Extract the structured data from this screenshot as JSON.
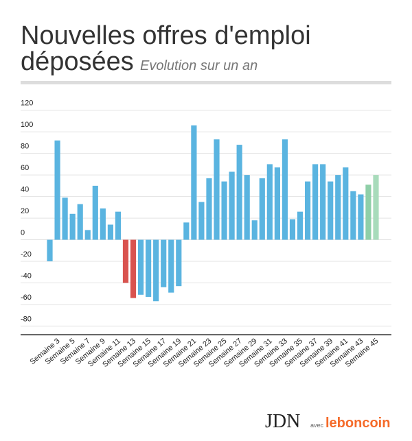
{
  "chart_data": {
    "type": "bar",
    "title": [
      "Nouvelles offres d'emploi",
      "déposées"
    ],
    "subtitle": "Evolution sur un an",
    "categories": [
      null,
      "Semaine 3",
      null,
      "Semaine 5",
      null,
      "Semaine 7",
      null,
      "Semaine 9",
      null,
      "Semaine 11",
      null,
      "Semaine 13",
      null,
      "Semaine 15",
      null,
      "Semaine 17",
      null,
      "Semaine 19",
      null,
      "Semaine 21",
      null,
      "Semaine 23",
      null,
      "Semaine 25",
      null,
      "Semaine 27",
      null,
      "Semaine 29",
      null,
      "Semaine 31",
      null,
      "Semaine 33",
      null,
      "Semaine 35",
      null,
      "Semaine 37",
      null,
      "Semaine 39",
      null,
      "Semaine 41",
      null,
      "Semaine 43",
      null,
      "Semaine 45"
    ],
    "values": [
      -20,
      92,
      39,
      24,
      33,
      9,
      50,
      29,
      14,
      26,
      -40,
      -54,
      -51,
      -53,
      -57,
      -44,
      -49,
      -43,
      16,
      106,
      35,
      57,
      93,
      54,
      63,
      88,
      60,
      18,
      57,
      70,
      67,
      93,
      19,
      26,
      54,
      70,
      70,
      54,
      60,
      67,
      45,
      42,
      51,
      60
    ],
    "colors": [
      "#5ab4e0",
      "#5ab4e0",
      "#5ab4e0",
      "#5ab4e0",
      "#5ab4e0",
      "#5ab4e0",
      "#5ab4e0",
      "#5ab4e0",
      "#5ab4e0",
      "#5ab4e0",
      "#d9534f",
      "#d9534f",
      "#5ab4e0",
      "#5ab4e0",
      "#5ab4e0",
      "#5ab4e0",
      "#5ab4e0",
      "#5ab4e0",
      "#5ab4e0",
      "#5ab4e0",
      "#5ab4e0",
      "#5ab4e0",
      "#5ab4e0",
      "#5ab4e0",
      "#5ab4e0",
      "#5ab4e0",
      "#5ab4e0",
      "#5ab4e0",
      "#5ab4e0",
      "#5ab4e0",
      "#5ab4e0",
      "#5ab4e0",
      "#5ab4e0",
      "#5ab4e0",
      "#5ab4e0",
      "#5ab4e0",
      "#5ab4e0",
      "#5ab4e0",
      "#5ab4e0",
      "#5ab4e0",
      "#5ab4e0",
      "#5ab4e0",
      "#8fcfa8",
      "#a8dbbb"
    ],
    "ylim": [
      -88,
      130
    ],
    "yticks": [
      -80,
      -60,
      -40,
      -20,
      0,
      20,
      40,
      60,
      80,
      100,
      120
    ],
    "grid": true
  },
  "branding": {
    "jdn": "JDN",
    "avec": "avec",
    "partner": "leboncoin"
  }
}
